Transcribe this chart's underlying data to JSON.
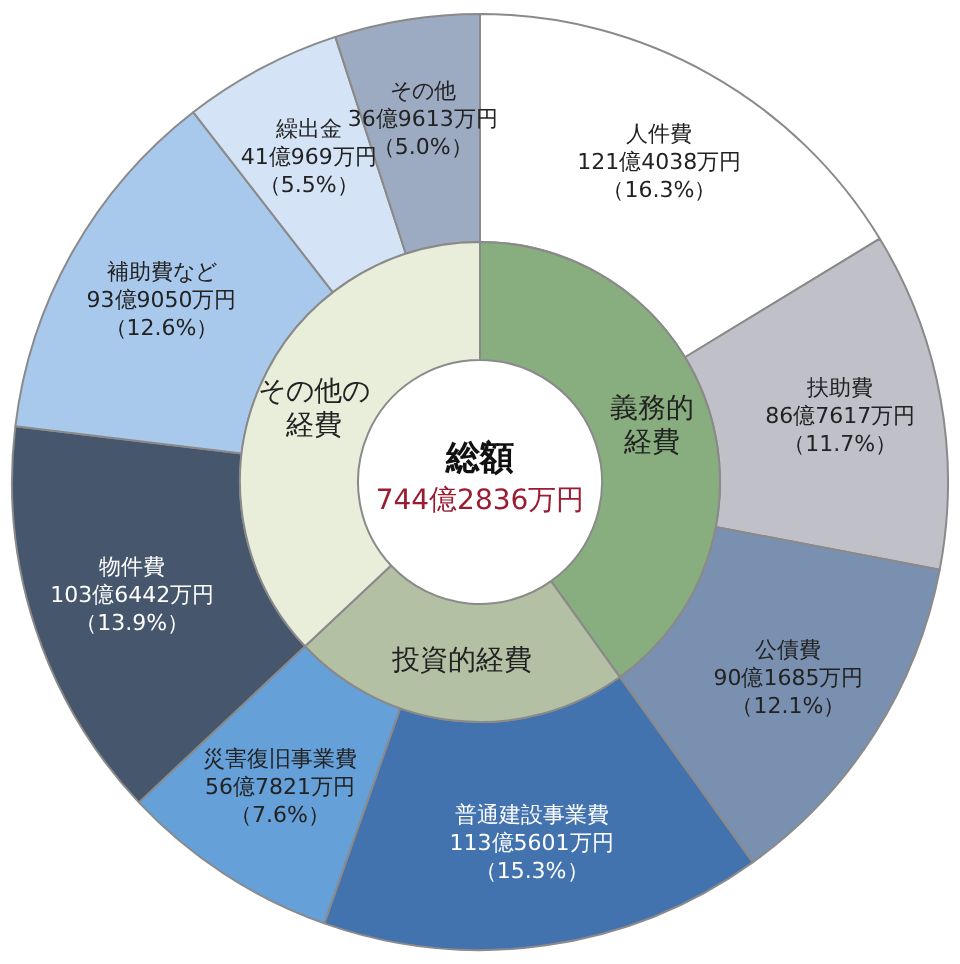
{
  "chart_data": [
    {
      "type": "donut",
      "categories": [
        "人件費",
        "扶助費",
        "公債費",
        "普通建設事業費",
        "災害復旧事業費",
        "物件費",
        "補助費など",
        "繰出金",
        "その他"
      ],
      "values": [
        16.3,
        11.7,
        12.1,
        15.3,
        7.6,
        13.9,
        12.6,
        5.5,
        5.0
      ],
      "colors": [
        "#ffffff",
        "#bfc0c8",
        "#7a90b0",
        "#4373ae",
        "#65a0d8",
        "#46566c",
        "#a9c9ec",
        "#d4e3f5",
        "#9dabc2"
      ],
      "value_labels": [
        "121億4038万円（16.3%）",
        "86億7617万円（11.7%）",
        "90億1685万円（12.1%）",
        "113億5601万円（15.3%）",
        "56億7821万円（7.6%）",
        "103億6442万円（13.9%）",
        "93億9050万円（12.6%）",
        "41億969万円（5.5%）",
        "36億9613万円（5.0%）"
      ]
    },
    {
      "type": "donut",
      "categories": [
        "義務的経費",
        "投資的経費",
        "その他の経費"
      ],
      "values": [
        40.1,
        22.9,
        37.0
      ],
      "colors": [
        "#88ad7e",
        "#b3c0a3",
        "#e9eedb"
      ],
      "annotations": [
        "総額",
        "744億2836万円"
      ]
    }
  ]
}
